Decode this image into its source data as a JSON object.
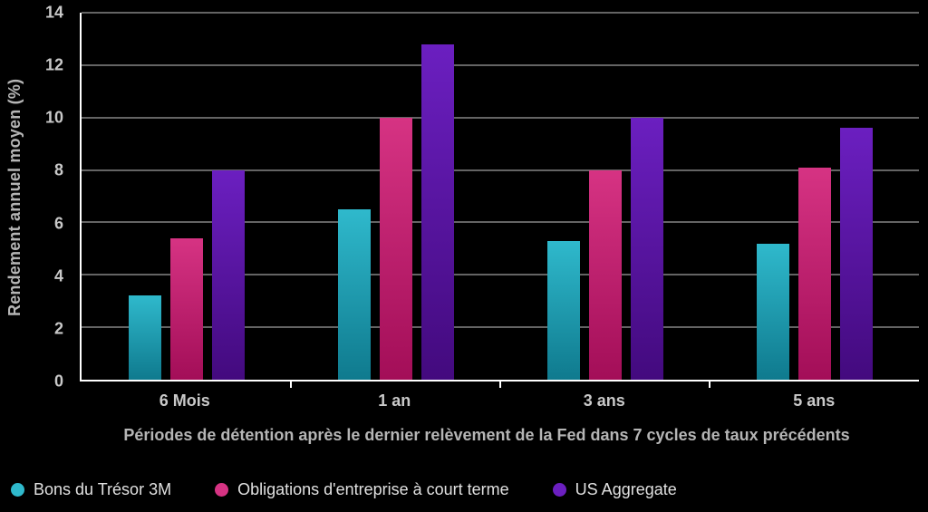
{
  "colors": {
    "background": "#000000",
    "teal_top": "#2FB9CC",
    "teal_bottom": "#0F7A8E",
    "magenta_top": "#D63383",
    "magenta_bottom": "#A30E58",
    "purple_top": "#6B1FC0",
    "purple_bottom": "#430A7E",
    "axis": "#FFFFFF",
    "grid": "#C9C9C9",
    "tick_text": "#C9C9C9",
    "label_text": "#B5B5B5",
    "legend_text": "#E0E0E0"
  },
  "chart_data": {
    "type": "bar",
    "categories": [
      "6 Mois",
      "1 an",
      "3 ans",
      "5 ans"
    ],
    "series": [
      {
        "name": "Bons du Trésor 3M",
        "color": "teal",
        "values": [
          3.2,
          6.5,
          5.3,
          5.2
        ]
      },
      {
        "name": "Obligations d'entreprise à court terme",
        "color": "magenta",
        "values": [
          5.4,
          10.0,
          8.0,
          8.1
        ]
      },
      {
        "name": "US Aggregate",
        "color": "purple",
        "values": [
          8.0,
          12.8,
          10.0,
          9.6
        ]
      }
    ],
    "title": "",
    "ylabel": "Rendement annuel moyen (%)",
    "xlabel": "Périodes de détention après le dernier relèvement de la Fed dans 7 cycles de taux précédents",
    "ylim": [
      0,
      14
    ],
    "ytick_step": 2,
    "grid": true,
    "legend_position": "bottom"
  }
}
